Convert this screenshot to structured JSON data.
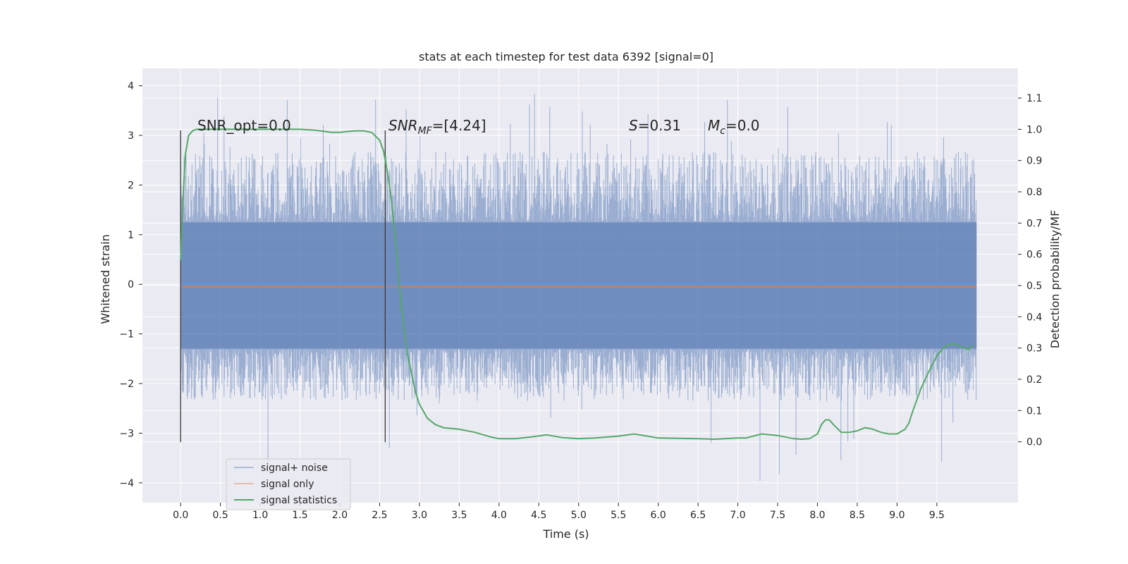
{
  "chart_data": {
    "type": "line",
    "title": "stats at each timestep for test data 6392 [signal=0]",
    "xlabel": "Time (s)",
    "ylabel": "Whitened strain",
    "y2label": "Detection probability/MF",
    "xlim": [
      -0.48,
      10.52
    ],
    "ylim": [
      -4.4,
      4.35
    ],
    "y2lim": [
      -0.195,
      1.195
    ],
    "xticks": [
      "0.0",
      "0.5",
      "1.0",
      "1.5",
      "2.0",
      "2.5",
      "3.0",
      "3.5",
      "4.0",
      "4.5",
      "5.0",
      "5.5",
      "6.0",
      "6.5",
      "7.0",
      "7.5",
      "8.0",
      "8.5",
      "9.0",
      "9.5"
    ],
    "yticks": [
      "4",
      "3",
      "2",
      "1",
      "0",
      "−1",
      "−2",
      "−3",
      "−4"
    ],
    "y2ticks": [
      "1.1",
      "1.0",
      "0.9",
      "0.8",
      "0.7",
      "0.6",
      "0.5",
      "0.4",
      "0.3",
      "0.2",
      "0.1",
      "0.0"
    ],
    "grid": true,
    "legend_position": "lower-left",
    "annotations": {
      "snr_opt": "SNR_opt=0.0",
      "snr_mf_base": "SNR",
      "snr_mf_sub": "MF",
      "snr_mf_value": "=[4.24]",
      "s_base": "S",
      "s_value": "=0.31",
      "mc_base": "M",
      "mc_sub": "c",
      "mc_value": "=0.0"
    },
    "vlines_x": [
      0.0,
      2.57
    ],
    "vlines_y": [
      -3.18,
      3.1
    ],
    "noise_extent": {
      "t_start": 0.0,
      "t_end": 10.0,
      "core_band": [
        -1.3,
        1.25
      ],
      "typical_envelope": [
        -2.3,
        2.6
      ],
      "max": 3.97,
      "min": -4.05
    },
    "series": [
      {
        "name": "signal+ noise",
        "color": "#4c72b0",
        "axis": "left"
      },
      {
        "name": "signal only",
        "color": "#dd8452",
        "axis": "left",
        "constant": -0.05,
        "x": [
          0.0,
          10.0
        ]
      },
      {
        "name": "signal statistics",
        "color": "#55a868",
        "axis": "right",
        "x": [
          0.0,
          0.03,
          0.06,
          0.1,
          0.15,
          0.2,
          0.3,
          0.5,
          1.0,
          1.5,
          1.7,
          1.9,
          2.0,
          2.1,
          2.2,
          2.3,
          2.4,
          2.5,
          2.55,
          2.6,
          2.65,
          2.7,
          2.75,
          2.8,
          2.85,
          2.9,
          2.95,
          3.0,
          3.1,
          3.2,
          3.3,
          3.5,
          3.7,
          3.9,
          4.0,
          4.2,
          4.4,
          4.6,
          4.8,
          5.0,
          5.2,
          5.5,
          5.7,
          6.0,
          6.5,
          6.7,
          7.0,
          7.1,
          7.3,
          7.5,
          7.7,
          7.8,
          7.9,
          8.0,
          8.05,
          8.1,
          8.15,
          8.2,
          8.3,
          8.4,
          8.5,
          8.6,
          8.7,
          8.8,
          8.9,
          9.0,
          9.1,
          9.15,
          9.2,
          9.3,
          9.4,
          9.5,
          9.6,
          9.7,
          9.8,
          9.9,
          9.95
        ],
        "values": [
          0.58,
          0.78,
          0.92,
          0.98,
          0.995,
          1.0,
          1.0,
          1.0,
          1.0,
          1.0,
          0.997,
          0.99,
          0.99,
          0.993,
          0.995,
          0.995,
          0.99,
          0.965,
          0.93,
          0.86,
          0.77,
          0.64,
          0.5,
          0.37,
          0.28,
          0.22,
          0.16,
          0.12,
          0.075,
          0.055,
          0.045,
          0.04,
          0.03,
          0.015,
          0.01,
          0.01,
          0.015,
          0.022,
          0.013,
          0.01,
          0.012,
          0.018,
          0.025,
          0.012,
          0.01,
          0.008,
          0.012,
          0.012,
          0.025,
          0.02,
          0.01,
          0.008,
          0.01,
          0.025,
          0.055,
          0.07,
          0.07,
          0.055,
          0.03,
          0.03,
          0.035,
          0.045,
          0.04,
          0.03,
          0.025,
          0.025,
          0.04,
          0.06,
          0.1,
          0.17,
          0.225,
          0.275,
          0.305,
          0.315,
          0.305,
          0.295,
          0.31
        ]
      }
    ]
  }
}
